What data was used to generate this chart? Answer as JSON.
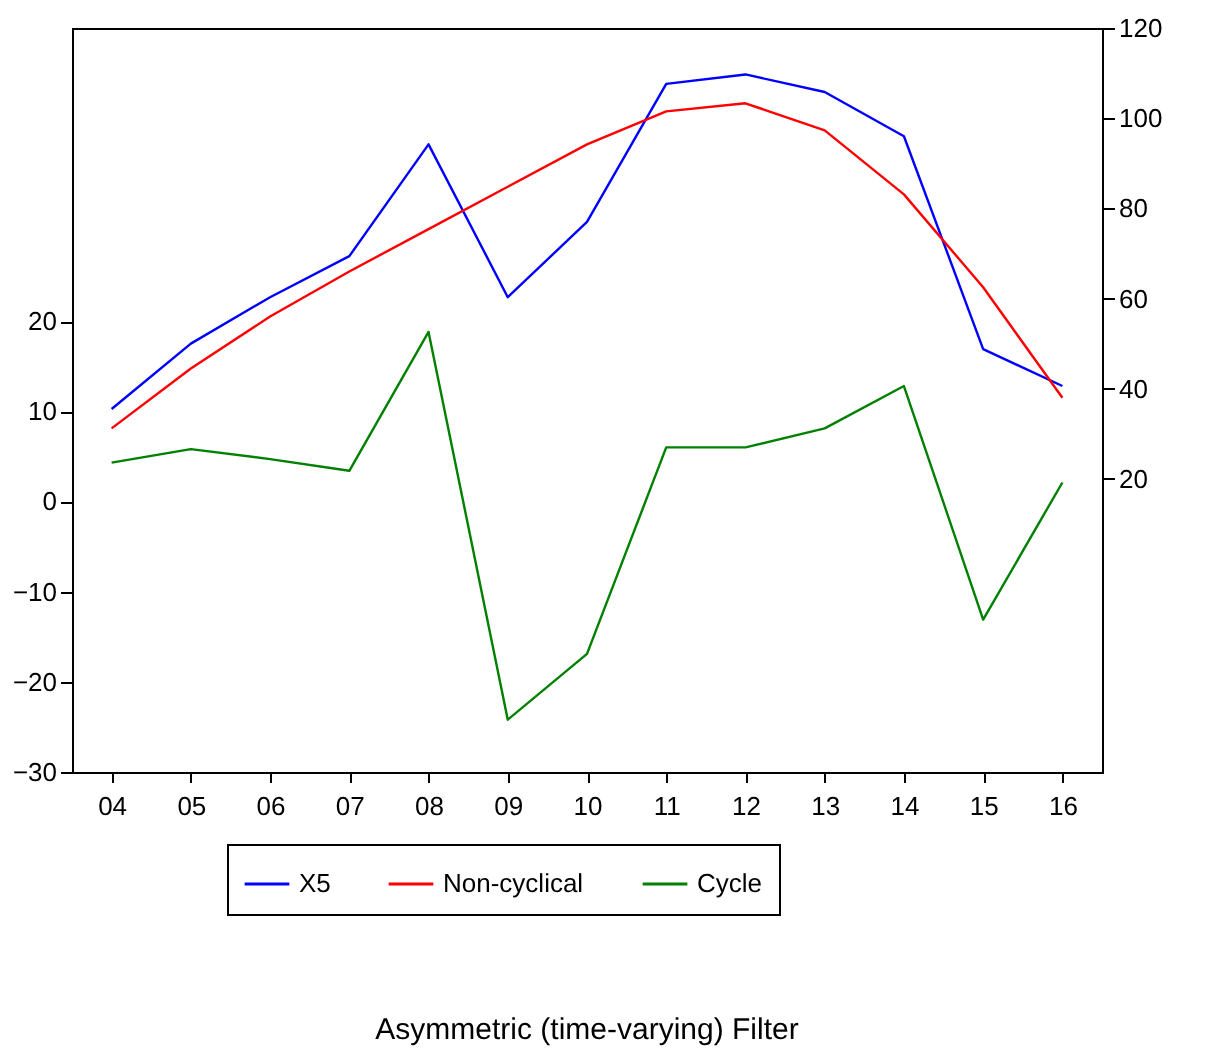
{
  "chart_data": {
    "type": "line",
    "title": "Asymmetric (time-varying) Filter",
    "categories": [
      "04",
      "05",
      "06",
      "07",
      "08",
      "09",
      "10",
      "11",
      "12",
      "13",
      "14",
      "15",
      "16"
    ],
    "series": [
      {
        "name": "X5",
        "color": "#0000ff",
        "axis": "y2",
        "values": [
          35.5,
          50,
          60.3,
          69.4,
          94.2,
          60.3,
          77,
          107.6,
          109.7,
          105.8,
          96,
          48.8,
          40.6
        ]
      },
      {
        "name": "Non-cyclical",
        "color": "#ff0000",
        "axis": "y2",
        "values": [
          31.2,
          44.5,
          56,
          66,
          75.4,
          84.8,
          94.2,
          101.5,
          103.3,
          97.3,
          83.1,
          62.5,
          38
        ]
      },
      {
        "name": "Cycle",
        "color": "#008000",
        "axis": "y",
        "values": [
          4.3,
          5.8,
          4.7,
          3.4,
          18.8,
          -24.2,
          -16.9,
          6,
          6,
          8.1,
          12.8,
          -13.1,
          2.1
        ]
      }
    ],
    "ylim": [
      -30,
      52.5
    ],
    "yticks": [
      -30,
      -20,
      -10,
      0,
      10,
      20
    ],
    "y2lim": [
      -45,
      120
    ],
    "y2ticks": [
      20,
      40,
      60,
      80,
      100,
      120
    ],
    "legend": "bottom",
    "grid": false,
    "marker": "none",
    "line_style": "solid"
  }
}
